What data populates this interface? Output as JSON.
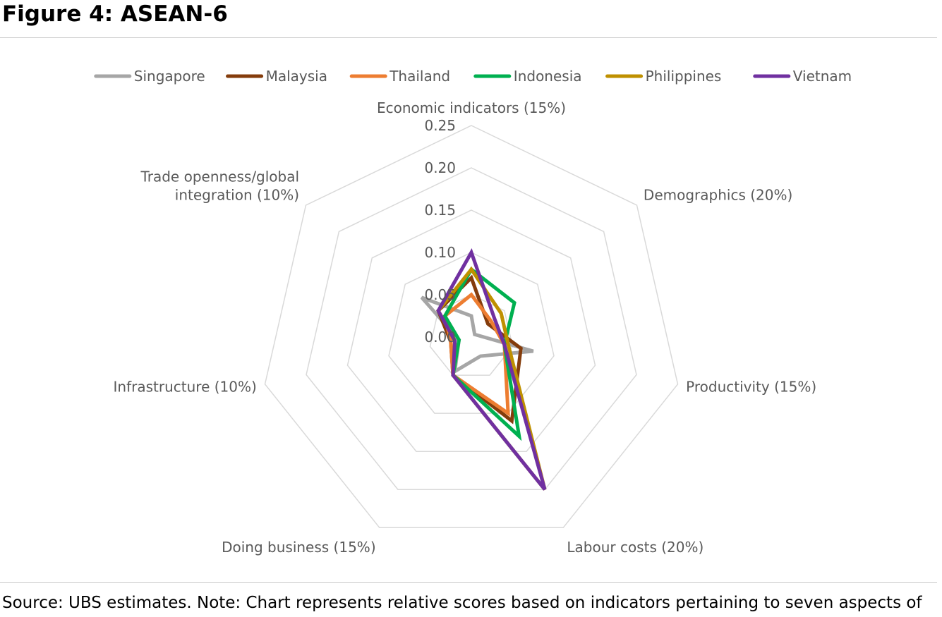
{
  "figure_title": "Figure 4: ASEAN-6",
  "source_note": "Source: UBS estimates. Note: Chart represents relative scores based on indicators pertaining to seven aspects of",
  "chart_data": {
    "type": "radar",
    "axes": [
      "Economic indicators (15%)",
      "Demographics (20%)",
      "Productivity (15%)",
      "Labour costs (20%)",
      "Doing business (15%)",
      "Infrastructure (10%)",
      "Trade openness/global integration (10%)"
    ],
    "axis_label_lines": [
      [
        "Economic indicators (15%)"
      ],
      [
        "Demographics (20%)"
      ],
      [
        "Productivity (15%)"
      ],
      [
        "Labour costs (20%)"
      ],
      [
        "Doing business (15%)"
      ],
      [
        "Infrastructure (10%)"
      ],
      [
        "Trade openness/global",
        "integration (10%)"
      ]
    ],
    "scale_ticks": [
      "0.00",
      "0.05",
      "0.10",
      "0.15",
      "0.20",
      "0.25"
    ],
    "range": [
      0,
      0.25
    ],
    "legend_position": "top",
    "grid": true,
    "series": [
      {
        "name": "Singapore",
        "color": "#a6a6a6",
        "values": [
          0.025,
          0.005,
          0.075,
          0.025,
          0.045,
          0.015,
          0.075
        ]
      },
      {
        "name": "Malaysia",
        "color": "#843c0c",
        "values": [
          0.07,
          0.025,
          0.06,
          0.11,
          0.05,
          0.025,
          0.05
        ]
      },
      {
        "name": "Thailand",
        "color": "#ed7d31",
        "values": [
          0.05,
          0.03,
          0.04,
          0.1,
          0.05,
          0.025,
          0.04
        ]
      },
      {
        "name": "Indonesia",
        "color": "#00b050",
        "values": [
          0.08,
          0.065,
          0.04,
          0.13,
          0.05,
          0.015,
          0.04
        ]
      },
      {
        "name": "Philippines",
        "color": "#bf9000",
        "values": [
          0.08,
          0.045,
          0.045,
          0.2,
          0.05,
          0.02,
          0.05
        ]
      },
      {
        "name": "Vietnam",
        "color": "#7030a0",
        "values": [
          0.1,
          0.035,
          0.04,
          0.2,
          0.05,
          0.02,
          0.05
        ]
      }
    ]
  }
}
